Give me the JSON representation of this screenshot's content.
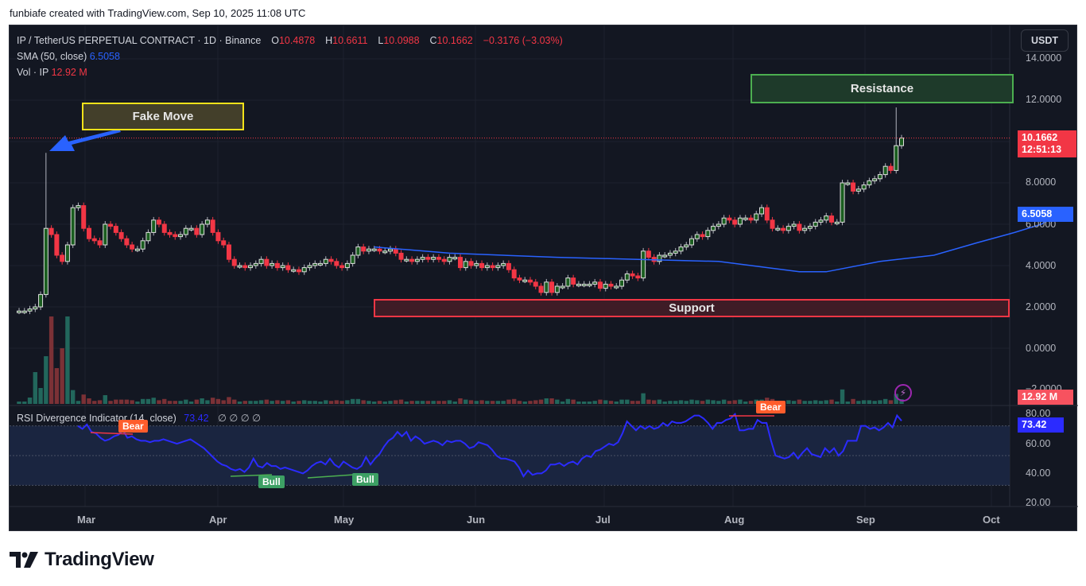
{
  "header": {
    "credit": "funbiafe created with TradingView.com, Sep 10, 2025 11:08 UTC"
  },
  "legend": {
    "symbol": "IP / TetherUS PERPETUAL CONTRACT · 1D · Binance",
    "open_label": "O",
    "open": "10.4878",
    "high_label": "H",
    "high": "10.6611",
    "low_label": "L",
    "low": "10.0988",
    "close_label": "C",
    "close": "10.1662",
    "change": "−0.3176 (−3.03%)",
    "sma_label": "SMA (50, close)",
    "sma_value": "6.5058",
    "vol_label": "Vol · IP",
    "vol_value": "12.92 M"
  },
  "rsi_legend": {
    "label": "RSI Divergence Indicator (14, close)",
    "value": "73.42",
    "symbols": "∅  ∅  ∅  ∅"
  },
  "toolbar": {
    "currency_button": "USDT"
  },
  "price_axis": {
    "ticks": [
      "14.0000",
      "12.0000",
      "8.0000",
      "6.0000",
      "4.0000",
      "2.0000",
      "0.0000",
      "−2.0000"
    ],
    "last_price": "10.1662",
    "countdown": "12:51:13",
    "sma_tag": "6.5058",
    "vol_tag": "12.92 M"
  },
  "rsi_axis": {
    "ticks": [
      "80.00",
      "60.00",
      "40.00",
      "20.00"
    ],
    "rsi_tag": "73.42"
  },
  "time_axis": {
    "labels": [
      "Mar",
      "Apr",
      "May",
      "Jun",
      "Jul",
      "Aug",
      "Sep",
      "Oct"
    ]
  },
  "annotations": {
    "fake_move": "Fake Move",
    "resistance": "Resistance",
    "support": "Support",
    "bear_1": "Bear",
    "bear_2": "Bear",
    "bull_1": "Bull",
    "bull_2": "Bull"
  },
  "colors": {
    "up": "#089981",
    "down": "#f23645",
    "sma": "#2962ff",
    "rsi": "#2b2bff",
    "background": "#131722",
    "grid": "#1e222d"
  },
  "brand": {
    "name": "TradingView"
  },
  "chart_data": [
    {
      "type": "candlestick",
      "title": "IP / TetherUS PERPETUAL CONTRACT · 1D · Binance",
      "xlabel": "",
      "ylabel": "USDT",
      "ylim": [
        -2,
        14
      ],
      "x_ticks": [
        "Mar",
        "Apr",
        "May",
        "Jun",
        "Jul",
        "Aug",
        "Sep",
        "Oct"
      ],
      "y_ticks": [
        14,
        12,
        10,
        8,
        6,
        4,
        2,
        0,
        -2
      ],
      "grid": true,
      "ohlc_last": {
        "open": 10.4878,
        "high": 10.6611,
        "low": 10.0988,
        "close": 10.1662,
        "change": -0.3176,
        "change_pct": -3.03
      },
      "closes_approx": [
        1.8,
        1.8,
        1.9,
        2.0,
        2.6,
        5.8,
        5.5,
        4.5,
        4.2,
        5.0,
        6.8,
        6.9,
        5.8,
        5.3,
        5.2,
        5.0,
        6.0,
        5.9,
        5.6,
        5.3,
        5.0,
        4.8,
        4.8,
        5.2,
        5.6,
        6.2,
        6.0,
        5.6,
        5.5,
        5.4,
        5.5,
        5.8,
        5.8,
        5.5,
        6.0,
        6.2,
        5.6,
        5.2,
        5.0,
        4.3,
        4.0,
        4.0,
        3.9,
        4.0,
        4.1,
        4.3,
        4.0,
        4.1,
        3.9,
        4.0,
        3.8,
        3.8,
        3.7,
        3.9,
        4.0,
        4.1,
        4.1,
        4.3,
        4.2,
        4.0,
        3.9,
        4.1,
        4.5,
        4.9,
        4.7,
        4.8,
        4.8,
        4.7,
        4.7,
        4.8,
        4.6,
        4.3,
        4.3,
        4.2,
        4.3,
        4.4,
        4.3,
        4.4,
        4.3,
        4.2,
        4.4,
        4.4,
        3.9,
        4.2,
        4.0,
        4.1,
        3.9,
        4.0,
        3.9,
        4.0,
        4.1,
        3.8,
        3.4,
        3.3,
        3.3,
        3.2,
        3.0,
        2.7,
        3.2,
        2.7,
        3.0,
        3.0,
        3.4,
        3.1,
        3.1,
        3.1,
        3.1,
        3.2,
        2.9,
        3.1,
        3.0,
        3.0,
        3.3,
        3.6,
        3.5,
        3.4,
        4.7,
        4.4,
        4.2,
        4.5,
        4.5,
        4.6,
        4.7,
        4.9,
        5.0,
        5.3,
        5.5,
        5.4,
        5.7,
        5.9,
        6.0,
        6.3,
        6.2,
        6.0,
        6.3,
        6.3,
        6.2,
        6.5,
        6.8,
        6.2,
        5.8,
        5.8,
        5.7,
        5.9,
        6.0,
        5.7,
        5.8,
        5.9,
        6.1,
        6.2,
        6.4,
        6.1,
        6.1,
        8.0,
        8.0,
        7.6,
        7.7,
        7.9,
        8.1,
        8.2,
        8.4,
        8.8,
        8.6,
        9.8,
        10.17
      ],
      "series": [
        {
          "name": "SMA (50, close)",
          "last": 6.5058,
          "points_approx": [
            [
              66,
              4.9
            ],
            [
              80,
              4.6
            ],
            [
              100,
              4.4
            ],
            [
              115,
              4.3
            ],
            [
              130,
              4.2
            ],
            [
              145,
              3.7
            ],
            [
              150,
              3.7
            ],
            [
              160,
              4.2
            ],
            [
              170,
              4.5
            ],
            [
              178,
              5.1
            ],
            [
              185,
              5.6
            ],
            [
              190,
              6.0
            ],
            [
              193,
              6.5058
            ]
          ],
          "note": "x indexes align with closes_approx candle index (approx)"
        },
        {
          "name": "Vol · IP",
          "last": "12.92M"
        }
      ],
      "zones": [
        {
          "label": "Resistance",
          "from": 12.0,
          "to": 13.5
        },
        {
          "label": "Support",
          "from": 1.8,
          "to": 2.6
        },
        {
          "label": "Fake Move",
          "points_to_high": 9.6
        }
      ]
    },
    {
      "type": "line",
      "title": "RSI Divergence Indicator (14, close)",
      "ylim": [
        20,
        80
      ],
      "y_ticks": [
        80,
        60,
        40,
        20
      ],
      "bands": [
        30,
        50,
        70
      ],
      "last": 73.42,
      "values_approx": [
        70,
        68,
        71,
        66,
        65,
        62,
        60,
        61,
        63,
        64,
        67,
        62,
        63,
        61,
        60,
        60,
        59,
        60,
        60,
        61,
        60,
        59,
        58,
        59,
        60,
        61,
        59,
        57,
        55,
        52,
        49,
        46,
        44,
        43,
        41,
        40,
        41,
        39,
        42,
        48,
        43,
        42,
        45,
        43,
        43,
        41,
        42,
        41,
        40,
        39,
        38,
        40,
        43,
        45,
        46,
        44,
        48,
        44,
        42,
        46,
        44,
        42,
        41,
        43,
        49,
        44,
        48,
        51,
        56,
        60,
        62,
        66,
        63,
        66,
        60,
        63,
        61,
        58,
        59,
        60,
        59,
        57,
        60,
        59,
        60,
        60,
        58,
        55,
        56,
        59,
        58,
        57,
        54,
        50,
        48,
        48,
        47,
        46,
        42,
        36,
        40,
        37,
        38,
        38,
        40,
        44,
        44,
        45,
        43,
        45,
        46,
        44,
        48,
        50,
        49,
        53,
        54,
        56,
        58,
        57,
        59,
        65,
        73,
        70,
        67,
        70,
        68,
        70,
        68,
        69,
        72,
        70,
        73,
        72,
        72,
        73,
        75,
        77,
        77,
        75,
        72,
        68,
        72,
        72,
        74,
        75,
        78,
        67,
        67,
        68,
        68,
        74,
        72,
        72,
        60,
        50,
        49,
        48,
        49,
        52,
        48,
        52,
        55,
        51,
        50,
        49,
        55,
        52,
        55,
        50,
        53,
        60,
        60,
        60,
        70,
        70,
        68,
        69,
        67,
        69,
        72,
        69,
        77,
        73.42
      ],
      "divergences": [
        {
          "label": "Bear",
          "type": "bearish"
        },
        {
          "label": "Bull",
          "type": "bullish"
        },
        {
          "label": "Bull",
          "type": "bullish"
        },
        {
          "label": "Bear",
          "type": "bearish"
        }
      ]
    }
  ]
}
